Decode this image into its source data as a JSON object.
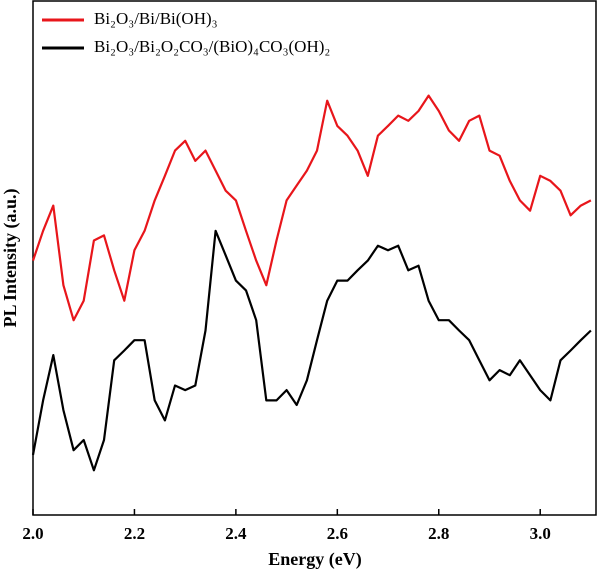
{
  "chart_data": {
    "type": "line",
    "xlabel": "Energy (eV)",
    "ylabel": "PL Intensity (a.u.)",
    "xlim": [
      2.0,
      3.11
    ],
    "ylim": [
      0,
      100
    ],
    "xticks": [
      {
        "value": 2.0,
        "label": "2.0"
      },
      {
        "value": 2.2,
        "label": "2.2"
      },
      {
        "value": 2.4,
        "label": "2.4"
      },
      {
        "value": 2.6,
        "label": "2.6"
      },
      {
        "value": 2.8,
        "label": "2.8"
      },
      {
        "value": 3.0,
        "label": "3.0"
      }
    ],
    "legend": "upper-left",
    "x": [
      2.0,
      2.02,
      2.04,
      2.06,
      2.08,
      2.1,
      2.12,
      2.14,
      2.16,
      2.18,
      2.2,
      2.22,
      2.24,
      2.26,
      2.28,
      2.3,
      2.32,
      2.34,
      2.36,
      2.38,
      2.4,
      2.42,
      2.44,
      2.46,
      2.48,
      2.5,
      2.52,
      2.54,
      2.56,
      2.58,
      2.6,
      2.62,
      2.64,
      2.66,
      2.68,
      2.7,
      2.72,
      2.74,
      2.76,
      2.78,
      2.8,
      2.82,
      2.84,
      2.86,
      2.88,
      2.9,
      2.92,
      2.94,
      2.96,
      2.98,
      3.0,
      3.02,
      3.04,
      3.06,
      3.08,
      3.1
    ],
    "series": [
      {
        "name": "Bi₂O₃/Bi/Bi(OH)₃",
        "color": "#e8161b",
        "values": [
          49.5,
          55.3,
          60.2,
          44.7,
          37.9,
          41.7,
          53.4,
          54.4,
          47.6,
          41.7,
          51.5,
          55.3,
          61.2,
          66.0,
          70.9,
          72.8,
          68.9,
          70.9,
          67.0,
          63.1,
          61.2,
          55.3,
          49.5,
          44.7,
          53.4,
          61.2,
          64.1,
          67.0,
          70.9,
          80.6,
          75.7,
          73.8,
          70.9,
          66.0,
          73.8,
          75.7,
          77.7,
          76.7,
          78.6,
          81.6,
          78.6,
          74.8,
          72.8,
          76.7,
          77.7,
          70.9,
          69.9,
          65.0,
          61.2,
          59.2,
          66.0,
          65.0,
          63.1,
          58.3,
          60.2,
          61.2
        ]
      },
      {
        "name": "Bi₂O₃/Bi₂O₂CO₃/(BiO)₄CO₃(OH)₂",
        "color": "#000000",
        "values": [
          11.7,
          22.3,
          31.1,
          20.4,
          12.6,
          14.6,
          8.7,
          14.6,
          30.1,
          32.0,
          34.0,
          34.0,
          22.3,
          18.4,
          25.2,
          24.3,
          25.2,
          35.9,
          55.3,
          50.5,
          45.6,
          43.7,
          37.9,
          22.3,
          22.3,
          24.3,
          21.4,
          26.2,
          34.0,
          41.7,
          45.6,
          45.6,
          47.6,
          49.5,
          52.4,
          51.5,
          52.4,
          47.6,
          48.5,
          41.7,
          37.9,
          37.9,
          35.9,
          34.0,
          30.1,
          26.2,
          28.2,
          27.2,
          30.1,
          27.2,
          24.3,
          22.3,
          30.1,
          32.0,
          34.0,
          35.9
        ]
      }
    ]
  }
}
